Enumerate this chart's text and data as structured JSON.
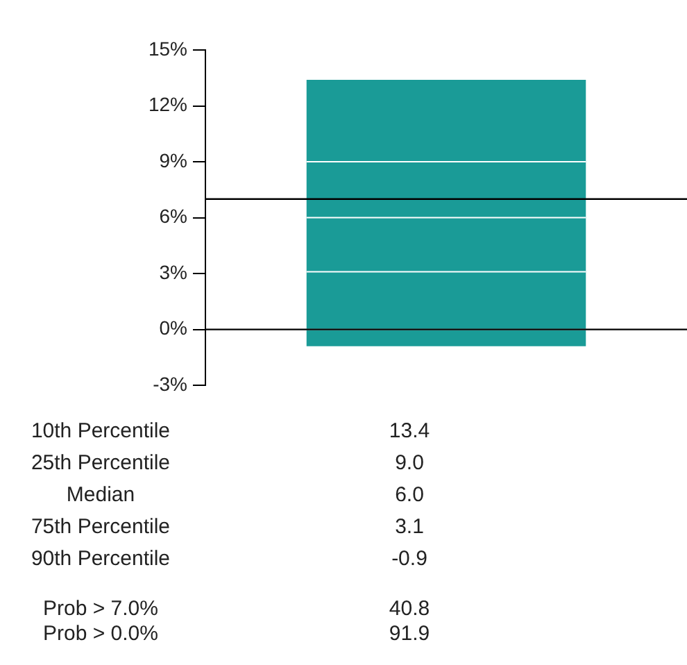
{
  "chart_data": {
    "type": "bar",
    "stacked": true,
    "categories": [
      null
    ],
    "series": [
      {
        "color": "#1a9b97",
        "values": [
          -0.9
        ]
      },
      {
        "color": "#1a9b97",
        "values": [
          3.1
        ]
      },
      {
        "color": "#1a9b97",
        "values": [
          2.9
        ]
      },
      {
        "color": "#1a9b97",
        "values": [
          3.0
        ]
      },
      {
        "color": "#1a9b97",
        "values": [
          4.4
        ]
      }
    ],
    "ylim": [
      -3,
      15
    ],
    "yticks": [
      {
        "value": -3,
        "label": "-3%"
      },
      {
        "value": 0,
        "label": "0%"
      },
      {
        "value": 3,
        "label": "3%"
      },
      {
        "value": 6,
        "label": "6%"
      },
      {
        "value": 9,
        "label": "9%"
      },
      {
        "value": 12,
        "label": "12%"
      },
      {
        "value": 15,
        "label": "15%"
      }
    ],
    "ref_lines": [
      {
        "axis": "y",
        "value": 7,
        "color": "#000000"
      },
      {
        "axis": "y",
        "value": 0,
        "color": "#000000"
      }
    ],
    "grid": false,
    "legend": false,
    "annotations": [
      "10th Percentile",
      "13.4",
      "25th Percentile",
      "9.0",
      "Median",
      "6.0",
      "75th Percentile",
      "3.1",
      "90th Percentile",
      "-0.9",
      "Prob > 7.0%",
      "40.8",
      "Prob > 0.0%",
      "91.9"
    ]
  }
}
